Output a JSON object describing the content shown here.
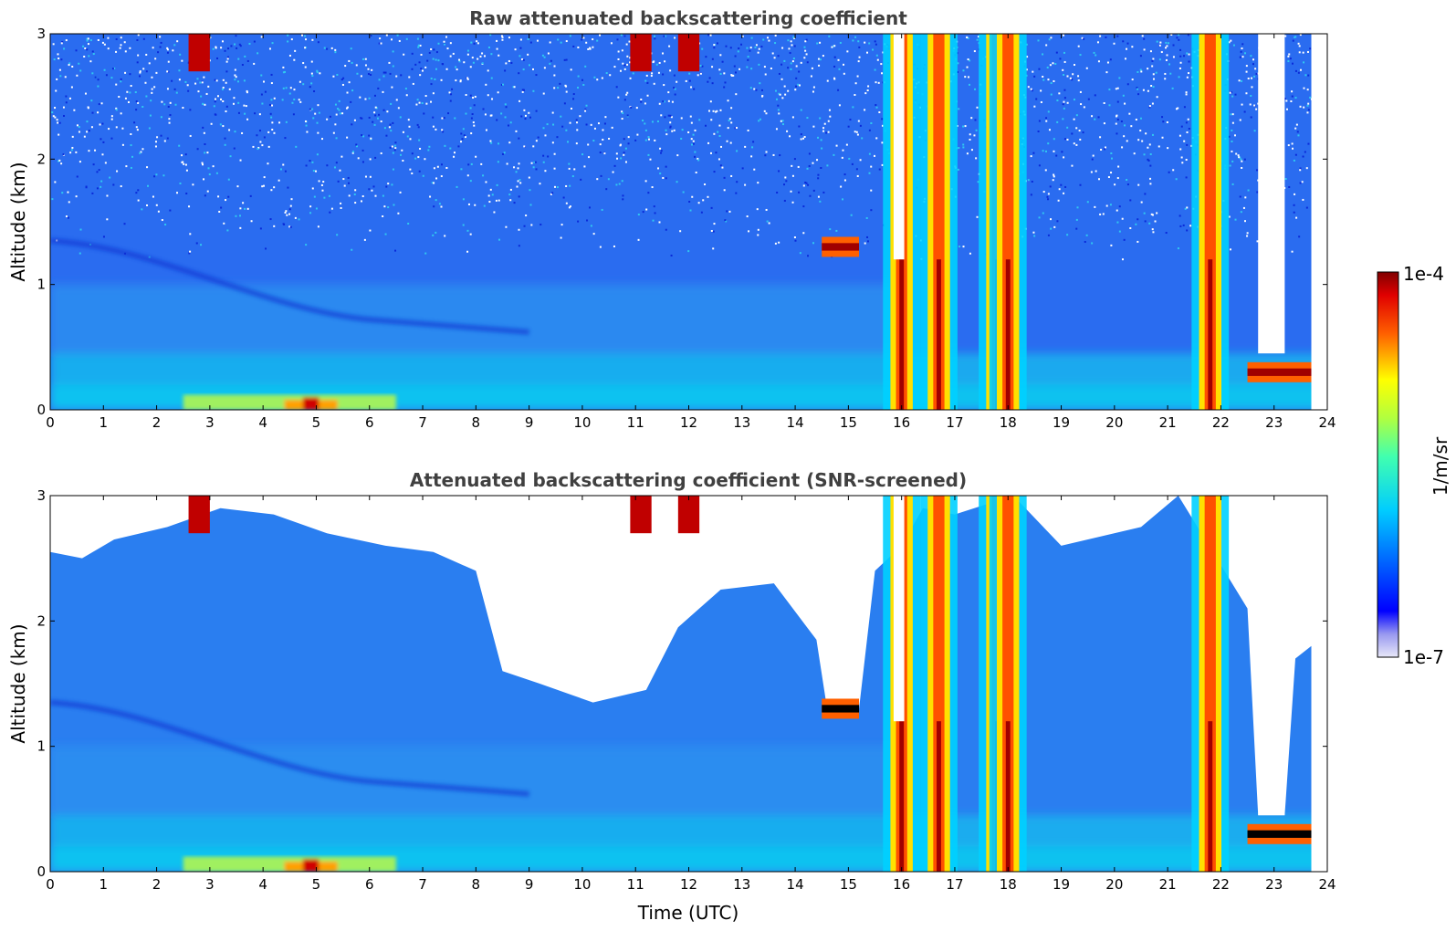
{
  "chart_data": [
    {
      "type": "heatmap",
      "title": "Raw attenuated backscattering coefficient",
      "xlabel": "",
      "ylabel": "Altitude (km)",
      "xlim": [
        0,
        24
      ],
      "ylim": [
        0,
        3
      ],
      "xticks": [
        "0",
        "1",
        "2",
        "3",
        "4",
        "5",
        "6",
        "7",
        "8",
        "9",
        "10",
        "11",
        "12",
        "13",
        "14",
        "15",
        "16",
        "17",
        "18",
        "19",
        "20",
        "21",
        "22",
        "23",
        "24"
      ],
      "yticks": [
        "0",
        "1",
        "2",
        "3"
      ],
      "screened": false,
      "features": [
        {
          "kind": "aerosol_layer",
          "t_start": 0.0,
          "t_end": 16.0,
          "alt_top_km": 1.3
        },
        {
          "kind": "surface_layer",
          "t_start": 2.5,
          "t_end": 6.5,
          "alt_top_km": 0.12,
          "peak_time": 4.9
        },
        {
          "kind": "cloud_base",
          "t_start": 14.5,
          "t_end": 15.2,
          "alt_km": 1.3
        },
        {
          "kind": "cloud_base",
          "t_start": 22.5,
          "t_end": 23.7,
          "alt_km": 0.3
        },
        {
          "kind": "precipitation",
          "times": [
            16.0,
            16.7,
            17.8,
            18.0,
            21.8
          ]
        },
        {
          "kind": "high_cloud",
          "times": [
            2.8,
            11.1,
            12.0
          ],
          "alt_km": 2.8
        }
      ]
    },
    {
      "type": "heatmap",
      "title": "Attenuated backscattering coefficient (SNR-screened)",
      "xlabel": "Time (UTC)",
      "ylabel": "Altitude (km)",
      "xlim": [
        0,
        24
      ],
      "ylim": [
        0,
        3
      ],
      "xticks": [
        "0",
        "1",
        "2",
        "3",
        "4",
        "5",
        "6",
        "7",
        "8",
        "9",
        "10",
        "11",
        "12",
        "13",
        "14",
        "15",
        "16",
        "17",
        "18",
        "19",
        "20",
        "21",
        "22",
        "23",
        "24"
      ],
      "yticks": [
        "0",
        "1",
        "2",
        "3"
      ],
      "screened": true
    }
  ],
  "colorbar": {
    "label": "1/m/sr",
    "max_label": "1e-4",
    "min_label": "1e-7",
    "scale": "log",
    "colormap": "jet"
  }
}
